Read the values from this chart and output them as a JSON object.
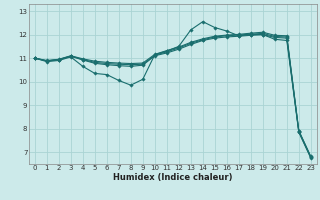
{
  "xlabel": "Humidex (Indice chaleur)",
  "background_color": "#cceaea",
  "grid_color": "#aad4d4",
  "line_color": "#1a6e6e",
  "xlim": [
    -0.5,
    23.5
  ],
  "ylim": [
    6.5,
    13.3
  ],
  "xticks": [
    0,
    1,
    2,
    3,
    4,
    5,
    6,
    7,
    8,
    9,
    10,
    11,
    12,
    13,
    14,
    15,
    16,
    17,
    18,
    19,
    20,
    21,
    22,
    23
  ],
  "yticks": [
    7,
    8,
    9,
    10,
    11,
    12,
    13
  ],
  "lines": [
    {
      "x": [
        0,
        1,
        2,
        3,
        4,
        5,
        6,
        7,
        8,
        9,
        10,
        11,
        12,
        13,
        14,
        15,
        16,
        17,
        18,
        19,
        20,
        21,
        22,
        23
      ],
      "y": [
        11.0,
        10.85,
        10.9,
        11.05,
        10.65,
        10.35,
        10.3,
        10.05,
        9.85,
        10.1,
        11.15,
        11.3,
        11.5,
        12.2,
        12.55,
        12.3,
        12.15,
        11.95,
        12.0,
        12.0,
        11.8,
        11.75,
        7.85,
        6.75
      ]
    },
    {
      "x": [
        0,
        1,
        2,
        3,
        4,
        5,
        6,
        7,
        8,
        9,
        10,
        11,
        12,
        13,
        14,
        15,
        16,
        17,
        18,
        19,
        20,
        21,
        22,
        23
      ],
      "y": [
        11.0,
        10.88,
        10.93,
        11.08,
        10.92,
        10.78,
        10.72,
        10.68,
        10.65,
        10.7,
        11.1,
        11.22,
        11.38,
        11.58,
        11.75,
        11.85,
        11.9,
        11.93,
        11.97,
        12.0,
        11.88,
        11.85,
        7.88,
        6.78
      ]
    },
    {
      "x": [
        0,
        1,
        2,
        3,
        4,
        5,
        6,
        7,
        8,
        9,
        10,
        11,
        12,
        13,
        14,
        15,
        16,
        17,
        18,
        19,
        20,
        21,
        22,
        23
      ],
      "y": [
        11.0,
        10.88,
        10.94,
        11.09,
        10.94,
        10.82,
        10.77,
        10.74,
        10.72,
        10.74,
        11.12,
        11.27,
        11.43,
        11.63,
        11.78,
        11.9,
        11.95,
        11.98,
        12.02,
        12.05,
        11.92,
        11.9,
        7.9,
        6.8
      ]
    },
    {
      "x": [
        0,
        1,
        2,
        3,
        4,
        5,
        6,
        7,
        8,
        9,
        10,
        11,
        12,
        13,
        14,
        15,
        16,
        17,
        18,
        19,
        20,
        21,
        22,
        23
      ],
      "y": [
        11.0,
        10.9,
        10.95,
        11.1,
        10.97,
        10.87,
        10.82,
        10.79,
        10.77,
        10.79,
        11.16,
        11.32,
        11.47,
        11.67,
        11.82,
        11.93,
        11.98,
        12.01,
        12.06,
        12.1,
        11.97,
        11.95,
        7.92,
        6.82
      ]
    }
  ]
}
